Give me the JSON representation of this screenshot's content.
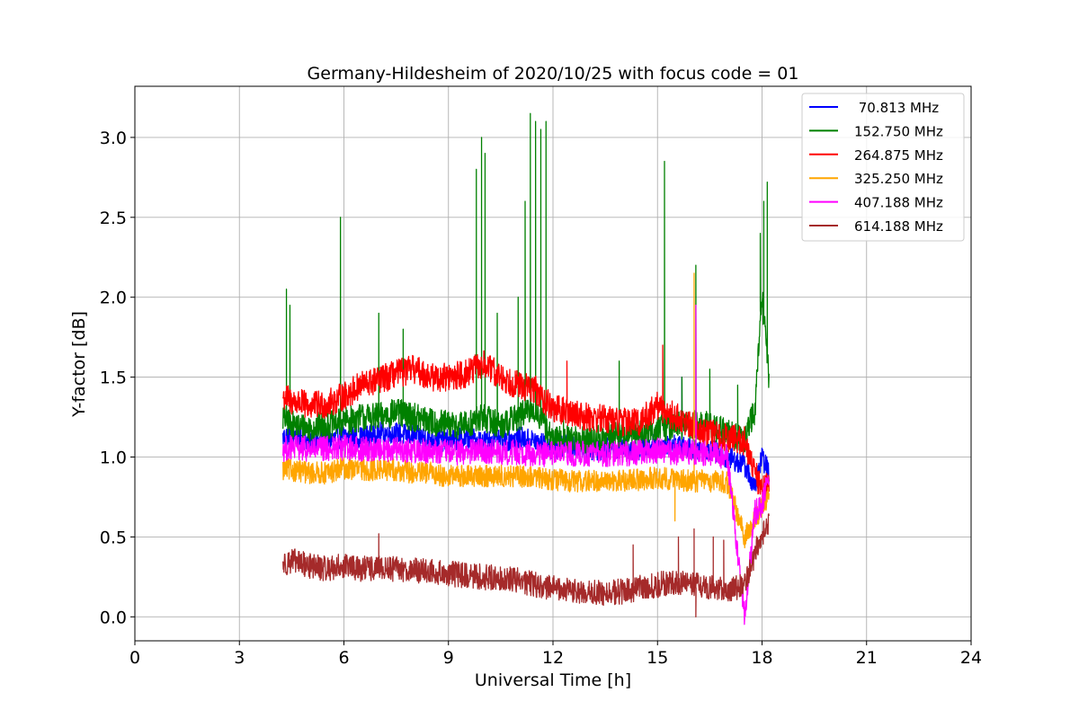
{
  "chart_data": {
    "type": "line",
    "title": "Germany-Hildesheim of 2020/10/25 with focus code = 01",
    "xlabel": "Universal Time [h]",
    "ylabel": "Y-factor [dB]",
    "xlim": [
      0,
      24
    ],
    "ylim": [
      -0.15,
      3.32
    ],
    "xticks": [
      0,
      3,
      6,
      9,
      12,
      15,
      18,
      21,
      24
    ],
    "xtick_labels": [
      "0",
      "3",
      "6",
      "9",
      "12",
      "15",
      "18",
      "21",
      "24"
    ],
    "yticks": [
      0.0,
      0.5,
      1.0,
      1.5,
      2.0,
      2.5,
      3.0
    ],
    "ytick_labels": [
      "0.0",
      "0.5",
      "1.0",
      "1.5",
      "2.0",
      "2.5",
      "3.0"
    ],
    "grid": true,
    "legend_position": "top-right",
    "series": [
      {
        "name": " 70.813 MHz",
        "color": "#0000ff",
        "x": [
          4.25,
          4.5,
          5,
          5.5,
          6,
          6.5,
          7,
          7.5,
          8,
          8.5,
          9,
          9.5,
          10,
          10.5,
          11,
          11.5,
          12,
          12.5,
          13,
          13.5,
          14,
          14.5,
          15,
          15.5,
          16,
          16.5,
          17,
          17.5,
          17.8,
          18.0,
          18.2
        ],
        "y": [
          1.12,
          1.15,
          1.1,
          1.1,
          1.13,
          1.12,
          1.15,
          1.15,
          1.13,
          1.12,
          1.1,
          1.12,
          1.1,
          1.1,
          1.12,
          1.1,
          1.05,
          1.08,
          1.05,
          1.05,
          1.06,
          1.05,
          1.08,
          1.07,
          1.05,
          1.05,
          1.0,
          0.95,
          0.8,
          1.0,
          0.9
        ],
        "spikes": [
          [
            15.7,
            1.5
          ],
          [
            13.9,
            1.3
          ]
        ]
      },
      {
        "name": "152.750 MHz",
        "color": "#008000",
        "x": [
          4.25,
          4.5,
          5,
          5.5,
          6,
          6.5,
          7,
          7.5,
          8,
          8.5,
          9,
          9.5,
          10,
          10.5,
          11,
          11.5,
          12,
          12.5,
          13,
          13.5,
          14,
          14.5,
          15,
          15.5,
          16,
          16.5,
          17,
          17.5,
          17.8,
          18.0,
          18.2
        ],
        "y": [
          1.25,
          1.2,
          1.18,
          1.2,
          1.22,
          1.25,
          1.25,
          1.28,
          1.25,
          1.22,
          1.2,
          1.2,
          1.25,
          1.2,
          1.25,
          1.3,
          1.1,
          1.12,
          1.1,
          1.12,
          1.15,
          1.15,
          1.18,
          1.2,
          1.2,
          1.2,
          1.15,
          1.1,
          1.3,
          2.0,
          1.5
        ],
        "spikes": [
          [
            4.35,
            2.05
          ],
          [
            4.45,
            1.95
          ],
          [
            5.9,
            2.5
          ],
          [
            7.0,
            1.9
          ],
          [
            7.7,
            1.8
          ],
          [
            9.8,
            2.8
          ],
          [
            9.95,
            3.0
          ],
          [
            10.05,
            2.9
          ],
          [
            10.4,
            1.9
          ],
          [
            11.0,
            2.0
          ],
          [
            11.2,
            2.6
          ],
          [
            11.35,
            3.15
          ],
          [
            11.5,
            3.1
          ],
          [
            11.65,
            3.05
          ],
          [
            11.8,
            3.1
          ],
          [
            12.3,
            1.3
          ],
          [
            13.9,
            1.6
          ],
          [
            15.2,
            2.85
          ],
          [
            15.7,
            1.5
          ],
          [
            16.1,
            2.2
          ],
          [
            16.5,
            1.55
          ],
          [
            17.3,
            1.45
          ],
          [
            17.95,
            2.4
          ],
          [
            18.05,
            2.6
          ],
          [
            18.15,
            2.72
          ]
        ]
      },
      {
        "name": "264.875 MHz",
        "color": "#ff0000",
        "x": [
          4.25,
          4.5,
          5,
          5.5,
          6,
          6.5,
          7,
          7.5,
          8,
          8.5,
          9,
          9.5,
          10,
          10.5,
          11,
          11.5,
          12,
          12.5,
          13,
          13.5,
          14,
          14.5,
          15,
          15.5,
          16,
          16.5,
          17,
          17.5,
          17.8,
          18.0,
          18.2
        ],
        "y": [
          1.38,
          1.35,
          1.32,
          1.33,
          1.38,
          1.45,
          1.48,
          1.52,
          1.55,
          1.5,
          1.5,
          1.52,
          1.58,
          1.5,
          1.45,
          1.42,
          1.3,
          1.28,
          1.25,
          1.24,
          1.22,
          1.22,
          1.32,
          1.25,
          1.2,
          1.15,
          1.12,
          1.1,
          0.9,
          0.8,
          0.85
        ],
        "spikes": [
          [
            12.4,
            1.6
          ],
          [
            15.15,
            1.7
          ]
        ]
      },
      {
        "name": "325.250 MHz",
        "color": "#ffa500",
        "x": [
          4.25,
          4.5,
          5,
          5.5,
          6,
          6.5,
          7,
          7.5,
          8,
          8.5,
          9,
          9.5,
          10,
          10.5,
          11,
          11.5,
          12,
          12.5,
          13,
          13.5,
          14,
          14.5,
          15,
          15.5,
          16,
          16.5,
          17,
          17.5,
          17.8,
          18.0,
          18.2
        ],
        "y": [
          0.92,
          0.92,
          0.9,
          0.9,
          0.93,
          0.92,
          0.92,
          0.92,
          0.9,
          0.9,
          0.88,
          0.88,
          0.88,
          0.88,
          0.88,
          0.87,
          0.86,
          0.85,
          0.85,
          0.85,
          0.85,
          0.86,
          0.87,
          0.86,
          0.85,
          0.85,
          0.84,
          0.5,
          0.6,
          0.7,
          0.75
        ],
        "spikes": [
          [
            16.05,
            2.15
          ],
          [
            15.5,
            0.6
          ]
        ]
      },
      {
        "name": "407.188 MHz",
        "color": "#ff00ff",
        "x": [
          4.25,
          4.5,
          5,
          5.5,
          6,
          6.5,
          7,
          7.5,
          8,
          8.5,
          9,
          9.5,
          10,
          10.5,
          11,
          11.5,
          12,
          12.5,
          13,
          13.5,
          14,
          14.5,
          15,
          15.5,
          16,
          16.5,
          17,
          17.5,
          17.8,
          18.0,
          18.2
        ],
        "y": [
          1.05,
          1.06,
          1.05,
          1.05,
          1.06,
          1.05,
          1.05,
          1.05,
          1.04,
          1.04,
          1.03,
          1.03,
          1.04,
          1.03,
          1.03,
          1.02,
          1.02,
          1.02,
          1.02,
          1.02,
          1.02,
          1.03,
          1.04,
          1.03,
          1.03,
          1.02,
          1.0,
          0.0,
          0.65,
          0.7,
          0.9
        ],
        "spikes": [
          [
            16.1,
            1.95
          ],
          [
            17.4,
            0.2
          ]
        ]
      },
      {
        "name": "614.188 MHz",
        "color": "#a52a2a",
        "x": [
          4.25,
          4.5,
          5,
          5.5,
          6,
          6.5,
          7,
          7.5,
          8,
          8.5,
          9,
          9.5,
          10,
          10.5,
          11,
          11.5,
          12,
          12.5,
          13,
          13.5,
          14,
          14.5,
          15,
          15.5,
          16,
          16.5,
          17,
          17.5,
          17.8,
          18.0,
          18.2
        ],
        "y": [
          0.33,
          0.35,
          0.32,
          0.3,
          0.32,
          0.3,
          0.3,
          0.3,
          0.29,
          0.28,
          0.27,
          0.26,
          0.25,
          0.24,
          0.23,
          0.2,
          0.18,
          0.16,
          0.15,
          0.15,
          0.16,
          0.18,
          0.2,
          0.22,
          0.2,
          0.18,
          0.17,
          0.2,
          0.4,
          0.5,
          0.6
        ],
        "spikes": [
          [
            7.0,
            0.52
          ],
          [
            14.3,
            0.45
          ],
          [
            15.6,
            0.5
          ],
          [
            16.05,
            0.55
          ],
          [
            16.1,
            0.0
          ],
          [
            16.6,
            0.5
          ],
          [
            16.9,
            0.48
          ]
        ]
      }
    ]
  }
}
